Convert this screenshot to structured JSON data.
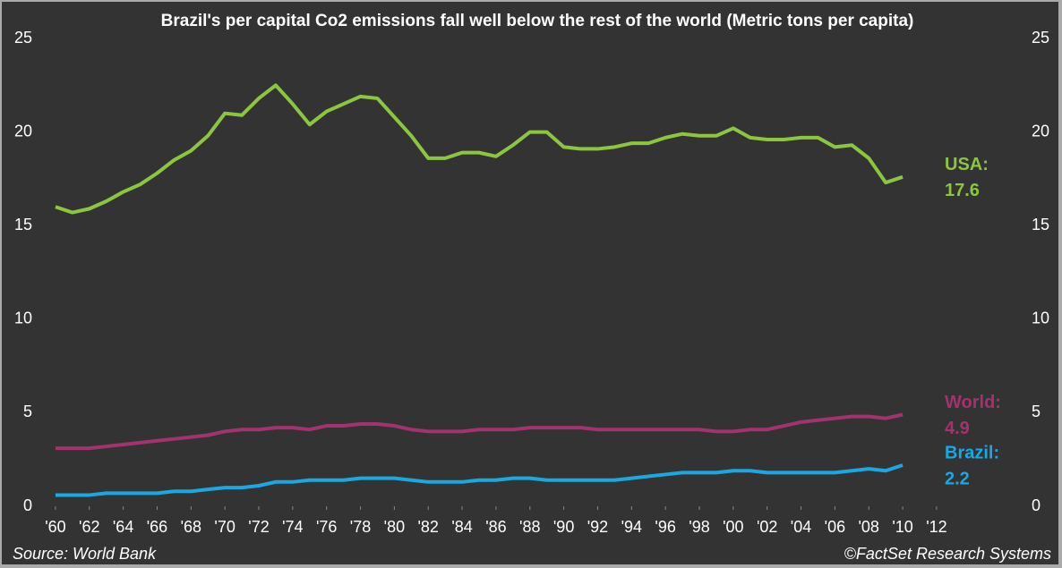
{
  "chart_data": {
    "type": "line",
    "title": "Brazil's per capital Co2 emissions fall well below the rest of the world (Metric tons per capita)",
    "source": "Source: World Bank",
    "credit": "©FactSet Research Systems",
    "x": [
      1960,
      1961,
      1962,
      1963,
      1964,
      1965,
      1966,
      1967,
      1968,
      1969,
      1970,
      1971,
      1972,
      1973,
      1974,
      1975,
      1976,
      1977,
      1978,
      1979,
      1980,
      1981,
      1982,
      1983,
      1984,
      1985,
      1986,
      1987,
      1988,
      1989,
      1990,
      1991,
      1992,
      1993,
      1994,
      1995,
      1996,
      1997,
      1998,
      1999,
      2000,
      2001,
      2002,
      2003,
      2004,
      2005,
      2006,
      2007,
      2008,
      2009,
      2010
    ],
    "series": [
      {
        "name": "USA:",
        "color": "#8cc63f",
        "values": [
          16.0,
          15.7,
          15.9,
          16.3,
          16.8,
          17.2,
          17.8,
          18.5,
          19.0,
          19.8,
          21.0,
          20.9,
          21.8,
          22.5,
          21.5,
          20.4,
          21.1,
          21.5,
          21.9,
          21.8,
          20.8,
          19.8,
          18.6,
          18.6,
          18.9,
          18.9,
          18.7,
          19.3,
          20.0,
          20.0,
          19.2,
          19.1,
          19.1,
          19.2,
          19.4,
          19.4,
          19.7,
          19.9,
          19.8,
          19.8,
          20.2,
          19.7,
          19.6,
          19.6,
          19.7,
          19.7,
          19.2,
          19.3,
          18.6,
          17.3,
          17.6
        ],
        "value_labels": [
          null,
          null,
          null,
          null,
          null,
          null,
          null,
          null,
          null,
          null,
          null,
          null,
          null,
          null,
          null,
          null,
          null,
          null,
          null,
          null,
          null,
          null,
          null,
          null,
          null,
          null,
          null,
          null,
          null,
          null,
          null,
          null,
          null,
          null,
          null,
          null,
          null,
          null,
          null,
          null,
          null,
          null,
          null,
          null,
          null,
          null,
          null,
          null,
          null,
          null,
          "17.6"
        ]
      },
      {
        "name": "World:",
        "color": "#a3336e",
        "values": [
          3.1,
          3.1,
          3.1,
          3.2,
          3.3,
          3.4,
          3.5,
          3.6,
          3.7,
          3.8,
          4.0,
          4.1,
          4.1,
          4.2,
          4.2,
          4.1,
          4.3,
          4.3,
          4.4,
          4.4,
          4.3,
          4.1,
          4.0,
          4.0,
          4.0,
          4.1,
          4.1,
          4.1,
          4.2,
          4.2,
          4.2,
          4.2,
          4.1,
          4.1,
          4.1,
          4.1,
          4.1,
          4.1,
          4.1,
          4.0,
          4.0,
          4.1,
          4.1,
          4.3,
          4.5,
          4.6,
          4.7,
          4.8,
          4.8,
          4.7,
          4.9
        ],
        "value_labels": [
          null,
          null,
          null,
          null,
          null,
          null,
          null,
          null,
          null,
          null,
          null,
          null,
          null,
          null,
          null,
          null,
          null,
          null,
          null,
          null,
          null,
          null,
          null,
          null,
          null,
          null,
          null,
          null,
          null,
          null,
          null,
          null,
          null,
          null,
          null,
          null,
          null,
          null,
          null,
          null,
          null,
          null,
          null,
          null,
          null,
          null,
          null,
          null,
          null,
          null,
          "4.9"
        ]
      },
      {
        "name": "Brazil:",
        "color": "#1aa8e2",
        "values": [
          0.6,
          0.6,
          0.6,
          0.7,
          0.7,
          0.7,
          0.7,
          0.8,
          0.8,
          0.9,
          1.0,
          1.0,
          1.1,
          1.3,
          1.3,
          1.4,
          1.4,
          1.4,
          1.5,
          1.5,
          1.5,
          1.4,
          1.3,
          1.3,
          1.3,
          1.4,
          1.4,
          1.5,
          1.5,
          1.4,
          1.4,
          1.4,
          1.4,
          1.4,
          1.5,
          1.6,
          1.7,
          1.8,
          1.8,
          1.8,
          1.9,
          1.9,
          1.8,
          1.8,
          1.8,
          1.8,
          1.8,
          1.9,
          2.0,
          1.9,
          2.2
        ],
        "value_labels": [
          null,
          null,
          null,
          null,
          null,
          null,
          null,
          null,
          null,
          null,
          null,
          null,
          null,
          null,
          null,
          null,
          null,
          null,
          null,
          null,
          null,
          null,
          null,
          null,
          null,
          null,
          null,
          null,
          null,
          null,
          null,
          null,
          null,
          null,
          null,
          null,
          null,
          null,
          null,
          null,
          null,
          null,
          null,
          null,
          null,
          null,
          null,
          null,
          null,
          null,
          "2.2"
        ]
      }
    ],
    "xlim": [
      1959,
      2017.5
    ],
    "xticks": [
      {
        "value": 1960,
        "label": "'60"
      },
      {
        "value": 1962,
        "label": "'62"
      },
      {
        "value": 1964,
        "label": "'64"
      },
      {
        "value": 1966,
        "label": "'66"
      },
      {
        "value": 1968,
        "label": "'68"
      },
      {
        "value": 1970,
        "label": "'70"
      },
      {
        "value": 1972,
        "label": "'72"
      },
      {
        "value": 1974,
        "label": "'74"
      },
      {
        "value": 1976,
        "label": "'76"
      },
      {
        "value": 1978,
        "label": "'78"
      },
      {
        "value": 1980,
        "label": "'80"
      },
      {
        "value": 1982,
        "label": "'82"
      },
      {
        "value": 1984,
        "label": "'84"
      },
      {
        "value": 1986,
        "label": "'86"
      },
      {
        "value": 1988,
        "label": "'88"
      },
      {
        "value": 1990,
        "label": "'90"
      },
      {
        "value": 1992,
        "label": "'92"
      },
      {
        "value": 1994,
        "label": "'94"
      },
      {
        "value": 1996,
        "label": "'96"
      },
      {
        "value": 1998,
        "label": "'98"
      },
      {
        "value": 2000,
        "label": "'00"
      },
      {
        "value": 2002,
        "label": "'02"
      },
      {
        "value": 2004,
        "label": "'04"
      },
      {
        "value": 2006,
        "label": "'06"
      },
      {
        "value": 2008,
        "label": "'08"
      },
      {
        "value": 2010,
        "label": "'10"
      },
      {
        "value": 2012,
        "label": "'12"
      }
    ],
    "ylim": [
      0,
      25
    ],
    "yticks": [
      0,
      5,
      10,
      15,
      20,
      25
    ],
    "y2lim": [
      0,
      25
    ],
    "y2ticks": [
      0,
      5,
      10,
      15,
      20,
      25
    ],
    "grid": false
  }
}
